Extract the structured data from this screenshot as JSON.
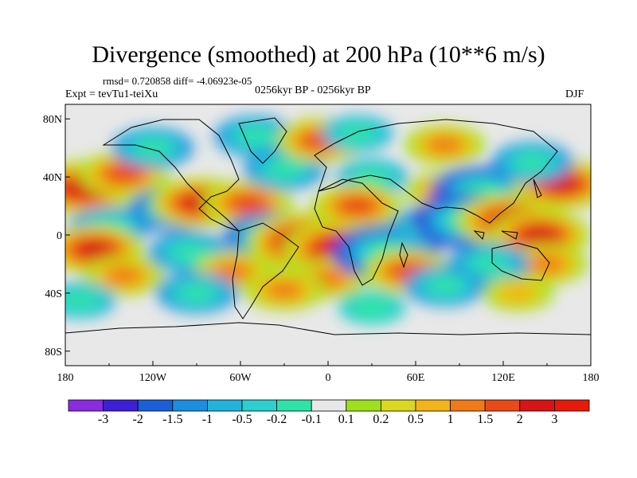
{
  "title": "Divergence (smoothed) at 200 hPa (10**6 m/s)",
  "stats_line": "rmsd= 0.720858 diff= -4.06923e-05",
  "expt_label": "Expt = tevTu1-teiXu",
  "period_label": "0256kyr BP - 0256kyr BP",
  "season_label": "DJF",
  "chart_data": {
    "type": "heatmap",
    "title": "Divergence (smoothed) at 200 hPa (10**6 m/s)",
    "units": "10**6 m/s",
    "x_ticks": [
      "180",
      "120W",
      "60W",
      "0",
      "60E",
      "120E",
      "180"
    ],
    "y_ticks": [
      "80N",
      "40N",
      "0",
      "40S",
      "80S"
    ],
    "xlim": [
      -180,
      180
    ],
    "ylim": [
      -90,
      90
    ],
    "colorbar": {
      "labels": [
        "-3",
        "-2",
        "-1.5",
        "-1",
        "-0.5",
        "-0.2",
        "-0.1",
        "0.1",
        "0.2",
        "0.5",
        "1",
        "1.5",
        "2",
        "3"
      ],
      "colors": [
        "#8a2be2",
        "#3c1fd6",
        "#1a5fd8",
        "#1a8fe0",
        "#22b3dc",
        "#2bcfcf",
        "#2ee3a8",
        "#e8e8e8",
        "#9de01c",
        "#d9d81e",
        "#f2b418",
        "#f07a18",
        "#ea4a18",
        "#d81414",
        "#e81a0c"
      ]
    },
    "blobs": [
      {
        "lon": -168,
        "lat": 32,
        "value": 2.5
      },
      {
        "lon": -140,
        "lat": 42,
        "value": 1.5
      },
      {
        "lon": -105,
        "lat": 18,
        "value": -1.5
      },
      {
        "lon": -150,
        "lat": 5,
        "value": -1
      },
      {
        "lon": -160,
        "lat": -10,
        "value": 2
      },
      {
        "lon": -140,
        "lat": -28,
        "value": 1
      },
      {
        "lon": -95,
        "lat": -12,
        "value": -1
      },
      {
        "lon": -120,
        "lat": 60,
        "value": -1
      },
      {
        "lon": -88,
        "lat": 22,
        "value": 2
      },
      {
        "lon": -55,
        "lat": 22,
        "value": 1.5
      },
      {
        "lon": -40,
        "lat": 0,
        "value": -1.5
      },
      {
        "lon": -65,
        "lat": -25,
        "value": 1
      },
      {
        "lon": -50,
        "lat": 68,
        "value": -1
      },
      {
        "lon": -15,
        "lat": -5,
        "value": 3
      },
      {
        "lon": 10,
        "lat": -10,
        "value": 3
      },
      {
        "lon": 0,
        "lat": -30,
        "value": 1
      },
      {
        "lon": -30,
        "lat": 45,
        "value": -1
      },
      {
        "lon": -5,
        "lat": 65,
        "value": 1.5
      },
      {
        "lon": 30,
        "lat": 40,
        "value": -0.5
      },
      {
        "lon": 20,
        "lat": 20,
        "value": 1.5
      },
      {
        "lon": 40,
        "lat": -12,
        "value": -2.5
      },
      {
        "lon": 55,
        "lat": -25,
        "value": 1.5
      },
      {
        "lon": 70,
        "lat": 5,
        "value": -1
      },
      {
        "lon": 80,
        "lat": 30,
        "value": 1
      },
      {
        "lon": 105,
        "lat": 30,
        "value": -2
      },
      {
        "lon": 95,
        "lat": 10,
        "value": -2.5
      },
      {
        "lon": 125,
        "lat": 10,
        "value": 2.5
      },
      {
        "lon": 145,
        "lat": 0,
        "value": 2
      },
      {
        "lon": 150,
        "lat": -20,
        "value": 1
      },
      {
        "lon": 110,
        "lat": -20,
        "value": -1
      },
      {
        "lon": 160,
        "lat": 35,
        "value": 2
      },
      {
        "lon": 140,
        "lat": 50,
        "value": -1
      },
      {
        "lon": 80,
        "lat": 62,
        "value": 1
      },
      {
        "lon": 20,
        "lat": 70,
        "value": -0.5
      },
      {
        "lon": -90,
        "lat": -40,
        "value": -1
      },
      {
        "lon": -30,
        "lat": -38,
        "value": 1
      },
      {
        "lon": 80,
        "lat": -35,
        "value": -1
      },
      {
        "lon": 130,
        "lat": -40,
        "value": 0.5
      },
      {
        "lon": -170,
        "lat": -45,
        "value": -0.5
      },
      {
        "lon": 30,
        "lat": -50,
        "value": -0.3
      }
    ]
  }
}
